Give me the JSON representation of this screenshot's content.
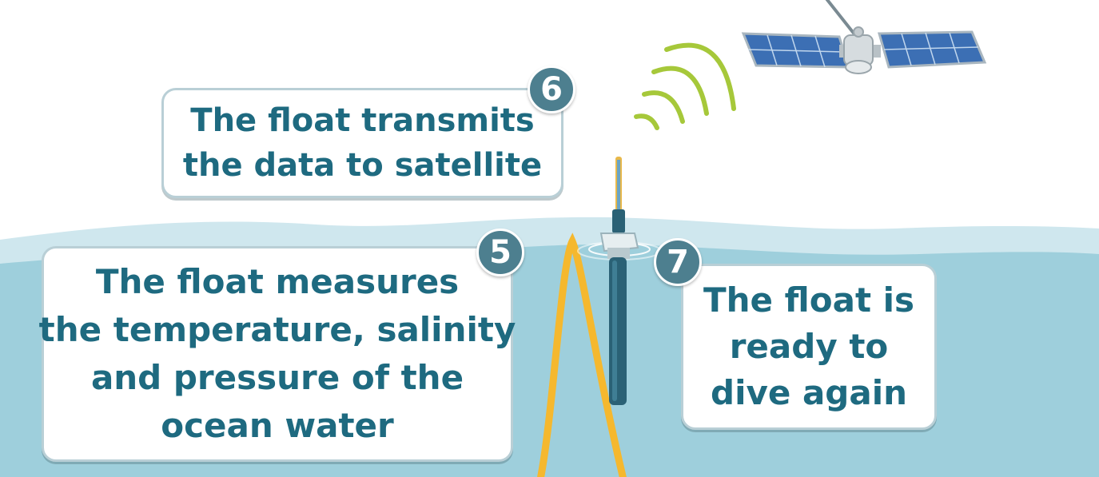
{
  "steps": [
    {
      "number": "6",
      "lines": [
        "The float transmits",
        "the data to satellite"
      ]
    },
    {
      "number": "5",
      "lines": [
        "The float measures",
        "the temperature, salinity",
        "and pressure of the",
        "ocean water"
      ]
    },
    {
      "number": "7",
      "lines": [
        "The float is",
        "ready to",
        "dive again"
      ]
    }
  ],
  "colors": {
    "ocean": "#9ecfdc",
    "ocean_surface": "#cfe7ee",
    "text": "#1e6a80",
    "badge": "#4d7f8f",
    "trajectory": "#f5b82e",
    "signal": "#a6c83a",
    "float_body": "#2a6175",
    "solar_panel": "#3c6fb4"
  },
  "icons": [
    "satellite-icon",
    "signal-waves-icon",
    "argo-float-icon",
    "float-trajectory-line"
  ]
}
